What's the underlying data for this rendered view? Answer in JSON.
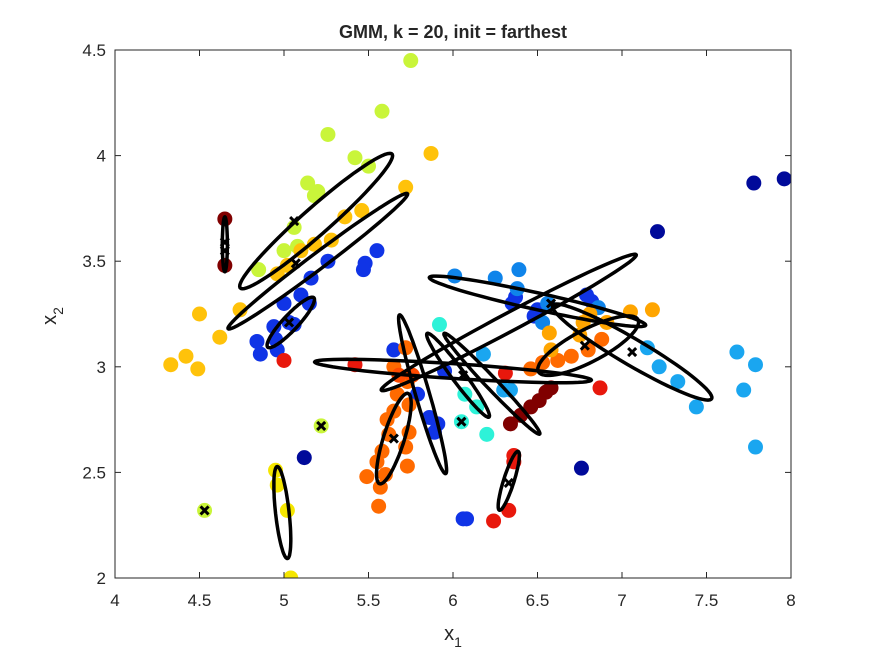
{
  "chart_data": {
    "type": "scatter",
    "title": "GMM, k = 20, init = farthest",
    "xlabel_main": "x",
    "xlabel_sub": "1",
    "ylabel_main": "x",
    "ylabel_sub": "2",
    "xlim": [
      4,
      8
    ],
    "ylim": [
      2,
      4.5
    ],
    "xticks": [
      "4",
      "4.5",
      "5",
      "5.5",
      "6",
      "6.5",
      "7",
      "7.5",
      "8"
    ],
    "yticks": [
      "2",
      "2.5",
      "3",
      "3.5",
      "4",
      "4.5"
    ],
    "xtick_values": [
      4,
      4.5,
      5,
      5.5,
      6,
      6.5,
      7,
      7.5,
      8
    ],
    "ytick_values": [
      2,
      2.5,
      3,
      3.5,
      4,
      4.5
    ],
    "grid": false,
    "colors": {
      "darkred": "#800000",
      "red": "#e8180c",
      "redorange": "#ff4a00",
      "orange": "#ff6a00",
      "amber": "#ffa500",
      "gold": "#ffc20a",
      "yellow": "#f5e600",
      "lime": "#c9f53a",
      "cyan": "#2ef2d8",
      "skyblue": "#1aa6f0",
      "azure": "#0f84ea",
      "blue": "#1034e6",
      "navy": "#000a9a",
      "ellipse": "#000000",
      "center": "#000000"
    },
    "points": [
      {
        "x": 5.75,
        "y": 4.45,
        "c": "lime"
      },
      {
        "x": 5.58,
        "y": 4.21,
        "c": "lime"
      },
      {
        "x": 5.26,
        "y": 4.1,
        "c": "lime"
      },
      {
        "x": 5.42,
        "y": 3.99,
        "c": "lime"
      },
      {
        "x": 5.5,
        "y": 3.95,
        "c": "lime"
      },
      {
        "x": 5.14,
        "y": 3.87,
        "c": "lime"
      },
      {
        "x": 5.2,
        "y": 3.83,
        "c": "lime"
      },
      {
        "x": 5.18,
        "y": 3.81,
        "c": "lime"
      },
      {
        "x": 5.06,
        "y": 3.66,
        "c": "lime"
      },
      {
        "x": 4.85,
        "y": 3.46,
        "c": "lime"
      },
      {
        "x": 5.0,
        "y": 3.55,
        "c": "lime"
      },
      {
        "x": 5.08,
        "y": 3.57,
        "c": "lime"
      },
      {
        "x": 5.87,
        "y": 4.01,
        "c": "gold"
      },
      {
        "x": 5.72,
        "y": 3.85,
        "c": "gold"
      },
      {
        "x": 5.46,
        "y": 3.74,
        "c": "gold"
      },
      {
        "x": 5.36,
        "y": 3.71,
        "c": "gold"
      },
      {
        "x": 5.28,
        "y": 3.6,
        "c": "gold"
      },
      {
        "x": 5.18,
        "y": 3.58,
        "c": "gold"
      },
      {
        "x": 5.1,
        "y": 3.55,
        "c": "gold"
      },
      {
        "x": 5.02,
        "y": 3.48,
        "c": "gold"
      },
      {
        "x": 4.96,
        "y": 3.44,
        "c": "gold"
      },
      {
        "x": 4.74,
        "y": 3.27,
        "c": "gold"
      },
      {
        "x": 4.5,
        "y": 3.25,
        "c": "gold"
      },
      {
        "x": 4.62,
        "y": 3.14,
        "c": "gold"
      },
      {
        "x": 4.42,
        "y": 3.05,
        "c": "gold"
      },
      {
        "x": 4.33,
        "y": 3.01,
        "c": "gold"
      },
      {
        "x": 4.49,
        "y": 2.99,
        "c": "gold"
      },
      {
        "x": 4.65,
        "y": 3.7,
        "c": "darkred"
      },
      {
        "x": 4.65,
        "y": 3.48,
        "c": "darkred"
      },
      {
        "x": 6.34,
        "y": 2.73,
        "c": "darkred"
      },
      {
        "x": 6.4,
        "y": 2.77,
        "c": "darkred"
      },
      {
        "x": 6.46,
        "y": 2.81,
        "c": "darkred"
      },
      {
        "x": 6.51,
        "y": 2.84,
        "c": "darkred"
      },
      {
        "x": 6.55,
        "y": 2.88,
        "c": "darkred"
      },
      {
        "x": 6.58,
        "y": 2.9,
        "c": "darkred"
      },
      {
        "x": 5.55,
        "y": 3.55,
        "c": "blue"
      },
      {
        "x": 5.48,
        "y": 3.49,
        "c": "blue"
      },
      {
        "x": 5.47,
        "y": 3.46,
        "c": "blue"
      },
      {
        "x": 5.26,
        "y": 3.5,
        "c": "blue"
      },
      {
        "x": 5.16,
        "y": 3.42,
        "c": "blue"
      },
      {
        "x": 5.1,
        "y": 3.34,
        "c": "blue"
      },
      {
        "x": 5.15,
        "y": 3.3,
        "c": "blue"
      },
      {
        "x": 5.0,
        "y": 3.3,
        "c": "blue"
      },
      {
        "x": 5.03,
        "y": 3.21,
        "c": "blue"
      },
      {
        "x": 4.94,
        "y": 3.19,
        "c": "blue"
      },
      {
        "x": 5.06,
        "y": 3.2,
        "c": "blue"
      },
      {
        "x": 4.95,
        "y": 3.13,
        "c": "blue"
      },
      {
        "x": 4.84,
        "y": 3.12,
        "c": "blue"
      },
      {
        "x": 4.86,
        "y": 3.06,
        "c": "blue"
      },
      {
        "x": 4.96,
        "y": 3.08,
        "c": "blue"
      },
      {
        "x": 5.65,
        "y": 3.08,
        "c": "blue"
      },
      {
        "x": 5.79,
        "y": 2.87,
        "c": "blue"
      },
      {
        "x": 5.86,
        "y": 2.76,
        "c": "blue"
      },
      {
        "x": 5.91,
        "y": 2.73,
        "c": "blue"
      },
      {
        "x": 5.89,
        "y": 2.69,
        "c": "blue"
      },
      {
        "x": 5.95,
        "y": 2.98,
        "c": "blue"
      },
      {
        "x": 6.06,
        "y": 2.28,
        "c": "blue"
      },
      {
        "x": 6.08,
        "y": 2.28,
        "c": "blue"
      },
      {
        "x": 6.5,
        "y": 3.27,
        "c": "blue"
      },
      {
        "x": 6.48,
        "y": 3.24,
        "c": "blue"
      },
      {
        "x": 6.79,
        "y": 3.34,
        "c": "blue"
      },
      {
        "x": 6.82,
        "y": 3.31,
        "c": "blue"
      },
      {
        "x": 6.37,
        "y": 3.33,
        "c": "blue"
      },
      {
        "x": 6.35,
        "y": 3.3,
        "c": "blue"
      },
      {
        "x": 5.12,
        "y": 2.57,
        "c": "navy"
      },
      {
        "x": 6.76,
        "y": 2.52,
        "c": "navy"
      },
      {
        "x": 7.78,
        "y": 3.87,
        "c": "navy"
      },
      {
        "x": 7.96,
        "y": 3.89,
        "c": "navy"
      },
      {
        "x": 7.21,
        "y": 3.64,
        "c": "navy"
      },
      {
        "x": 6.01,
        "y": 3.43,
        "c": "azure"
      },
      {
        "x": 6.25,
        "y": 3.42,
        "c": "azure"
      },
      {
        "x": 6.39,
        "y": 3.46,
        "c": "azure"
      },
      {
        "x": 6.38,
        "y": 3.37,
        "c": "azure"
      },
      {
        "x": 6.56,
        "y": 3.3,
        "c": "azure"
      },
      {
        "x": 6.53,
        "y": 3.21,
        "c": "azure"
      },
      {
        "x": 6.86,
        "y": 3.28,
        "c": "azure"
      },
      {
        "x": 7.15,
        "y": 3.09,
        "c": "skyblue"
      },
      {
        "x": 7.22,
        "y": 3.0,
        "c": "skyblue"
      },
      {
        "x": 7.33,
        "y": 2.93,
        "c": "skyblue"
      },
      {
        "x": 7.44,
        "y": 2.81,
        "c": "skyblue"
      },
      {
        "x": 7.68,
        "y": 3.07,
        "c": "skyblue"
      },
      {
        "x": 7.79,
        "y": 3.01,
        "c": "skyblue"
      },
      {
        "x": 7.72,
        "y": 2.89,
        "c": "skyblue"
      },
      {
        "x": 7.79,
        "y": 2.62,
        "c": "skyblue"
      },
      {
        "x": 6.18,
        "y": 3.06,
        "c": "skyblue"
      },
      {
        "x": 6.3,
        "y": 2.89,
        "c": "skyblue"
      },
      {
        "x": 6.34,
        "y": 2.89,
        "c": "skyblue"
      },
      {
        "x": 5.92,
        "y": 3.2,
        "c": "cyan"
      },
      {
        "x": 6.14,
        "y": 2.81,
        "c": "cyan"
      },
      {
        "x": 6.2,
        "y": 2.68,
        "c": "cyan"
      },
      {
        "x": 6.07,
        "y": 2.87,
        "c": "cyan"
      },
      {
        "x": 6.05,
        "y": 2.74,
        "c": "cyan"
      },
      {
        "x": 5.22,
        "y": 2.72,
        "c": "lime"
      },
      {
        "x": 4.53,
        "y": 2.32,
        "c": "lime"
      },
      {
        "x": 4.95,
        "y": 2.51,
        "c": "yellow"
      },
      {
        "x": 4.96,
        "y": 2.44,
        "c": "yellow"
      },
      {
        "x": 5.02,
        "y": 2.32,
        "c": "yellow"
      },
      {
        "x": 5.04,
        "y": 2.0,
        "c": "yellow"
      },
      {
        "x": 5.0,
        "y": 3.03,
        "c": "red"
      },
      {
        "x": 5.42,
        "y": 3.01,
        "c": "red"
      },
      {
        "x": 6.36,
        "y": 2.58,
        "c": "red"
      },
      {
        "x": 6.36,
        "y": 2.55,
        "c": "red"
      },
      {
        "x": 6.24,
        "y": 2.27,
        "c": "red"
      },
      {
        "x": 6.33,
        "y": 2.32,
        "c": "red"
      },
      {
        "x": 6.87,
        "y": 2.9,
        "c": "red"
      },
      {
        "x": 6.31,
        "y": 2.97,
        "c": "red"
      },
      {
        "x": 5.72,
        "y": 3.09,
        "c": "orange"
      },
      {
        "x": 5.65,
        "y": 3.0,
        "c": "orange"
      },
      {
        "x": 5.73,
        "y": 2.93,
        "c": "orange"
      },
      {
        "x": 5.67,
        "y": 2.87,
        "c": "orange"
      },
      {
        "x": 5.74,
        "y": 2.82,
        "c": "orange"
      },
      {
        "x": 5.65,
        "y": 2.79,
        "c": "orange"
      },
      {
        "x": 5.61,
        "y": 2.75,
        "c": "orange"
      },
      {
        "x": 5.62,
        "y": 2.68,
        "c": "orange"
      },
      {
        "x": 5.74,
        "y": 2.69,
        "c": "orange"
      },
      {
        "x": 5.72,
        "y": 2.62,
        "c": "orange"
      },
      {
        "x": 5.58,
        "y": 2.6,
        "c": "orange"
      },
      {
        "x": 5.55,
        "y": 2.55,
        "c": "orange"
      },
      {
        "x": 5.6,
        "y": 2.49,
        "c": "orange"
      },
      {
        "x": 5.49,
        "y": 2.48,
        "c": "orange"
      },
      {
        "x": 5.57,
        "y": 2.43,
        "c": "orange"
      },
      {
        "x": 5.56,
        "y": 2.34,
        "c": "orange"
      },
      {
        "x": 5.73,
        "y": 2.53,
        "c": "orange"
      },
      {
        "x": 6.46,
        "y": 2.99,
        "c": "orange"
      },
      {
        "x": 6.53,
        "y": 3.02,
        "c": "orange"
      },
      {
        "x": 6.62,
        "y": 3.03,
        "c": "orange"
      },
      {
        "x": 6.7,
        "y": 3.05,
        "c": "orange"
      },
      {
        "x": 6.8,
        "y": 3.08,
        "c": "orange"
      },
      {
        "x": 6.88,
        "y": 3.13,
        "c": "orange"
      },
      {
        "x": 6.57,
        "y": 3.16,
        "c": "amber"
      },
      {
        "x": 6.75,
        "y": 3.15,
        "c": "amber"
      },
      {
        "x": 6.77,
        "y": 3.21,
        "c": "amber"
      },
      {
        "x": 6.91,
        "y": 3.21,
        "c": "amber"
      },
      {
        "x": 6.81,
        "y": 3.25,
        "c": "amber"
      },
      {
        "x": 7.05,
        "y": 3.26,
        "c": "amber"
      },
      {
        "x": 7.18,
        "y": 3.27,
        "c": "amber"
      },
      {
        "x": 6.58,
        "y": 3.08,
        "c": "amber"
      },
      {
        "x": 5.76,
        "y": 2.96,
        "c": "redorange"
      },
      {
        "x": 5.68,
        "y": 2.96,
        "c": "redorange"
      }
    ],
    "ellipses": [
      {
        "cx": 5.19,
        "cy": 3.69,
        "rx": 0.55,
        "ry": 0.07,
        "angle": 35
      },
      {
        "cx": 5.2,
        "cy": 3.5,
        "rx": 0.62,
        "ry": 0.04,
        "angle": 31
      },
      {
        "cx": 4.65,
        "cy": 3.58,
        "rx": 0.13,
        "ry": 0.015,
        "angle": 90
      },
      {
        "cx": 5.04,
        "cy": 3.21,
        "rx": 0.18,
        "ry": 0.04,
        "angle": 40
      },
      {
        "cx": 6.0,
        "cy": 2.98,
        "rx": 0.82,
        "ry": 0.035,
        "angle": -3
      },
      {
        "cx": 5.82,
        "cy": 2.87,
        "rx": 0.4,
        "ry": 0.04,
        "angle": -70
      },
      {
        "cx": 6.33,
        "cy": 3.21,
        "rx": 0.82,
        "ry": 0.045,
        "angle": 23
      },
      {
        "cx": 6.5,
        "cy": 3.31,
        "rx": 0.65,
        "ry": 0.04,
        "angle": -10
      },
      {
        "cx": 6.03,
        "cy": 2.96,
        "rx": 0.27,
        "ry": 0.035,
        "angle": -47
      },
      {
        "cx": 6.23,
        "cy": 2.92,
        "rx": 0.37,
        "ry": 0.03,
        "angle": -40
      },
      {
        "cx": 6.8,
        "cy": 3.1,
        "rx": 0.32,
        "ry": 0.08,
        "angle": 22
      },
      {
        "cx": 7.06,
        "cy": 3.07,
        "rx": 0.52,
        "ry": 0.065,
        "angle": -25
      },
      {
        "cx": 5.65,
        "cy": 2.66,
        "rx": 0.23,
        "ry": 0.06,
        "angle": 68
      },
      {
        "cx": 6.33,
        "cy": 2.46,
        "rx": 0.15,
        "ry": 0.03,
        "angle": 68
      },
      {
        "cx": 4.99,
        "cy": 2.31,
        "rx": 0.22,
        "ry": 0.04,
        "angle": -82
      }
    ],
    "centers": [
      {
        "x": 5.06,
        "y": 3.69
      },
      {
        "x": 5.07,
        "y": 3.49
      },
      {
        "x": 4.65,
        "y": 3.59
      },
      {
        "x": 4.65,
        "y": 3.55
      },
      {
        "x": 5.03,
        "y": 3.21
      },
      {
        "x": 6.05,
        "y": 2.74
      },
      {
        "x": 5.22,
        "y": 2.72
      },
      {
        "x": 4.53,
        "y": 2.32
      },
      {
        "x": 5.65,
        "y": 2.66
      },
      {
        "x": 6.33,
        "y": 2.45
      },
      {
        "x": 7.06,
        "y": 3.07
      },
      {
        "x": 6.78,
        "y": 3.1
      },
      {
        "x": 6.58,
        "y": 3.3
      },
      {
        "x": 6.06,
        "y": 2.96
      }
    ]
  }
}
